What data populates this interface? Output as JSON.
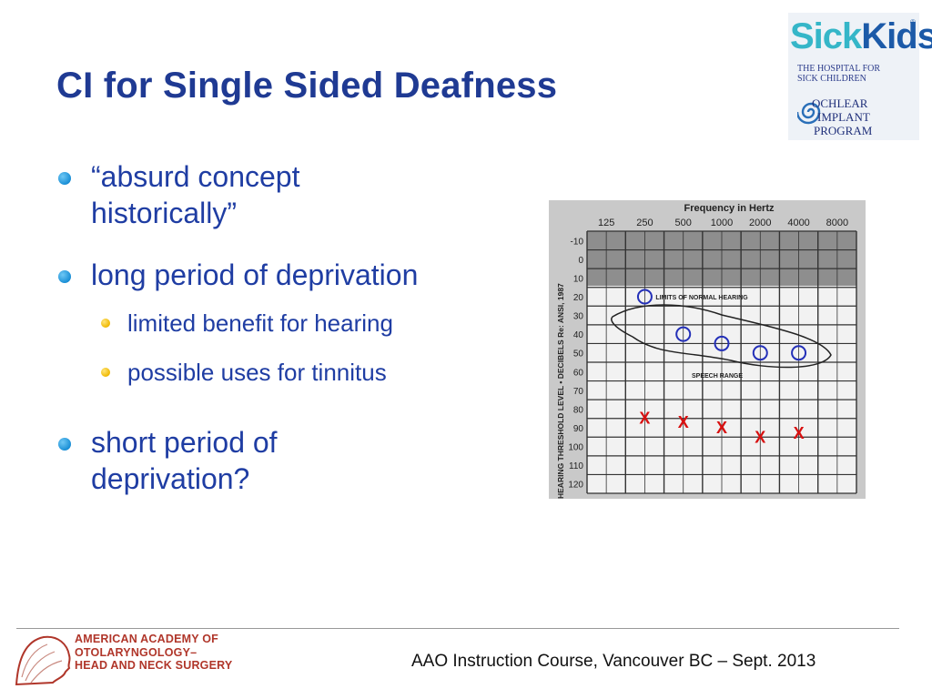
{
  "title": "CI for Single Sided Deafness",
  "bullets": [
    {
      "text": "“absurd concept historically”"
    },
    {
      "text": "long period of deprivation",
      "sub": [
        "limited benefit for hearing",
        "possible uses for tinnitus"
      ]
    },
    {
      "text": "short period of deprivation?"
    }
  ],
  "logo": {
    "name_a": "Sick",
    "name_b": "Kids",
    "registered": "®",
    "hospital_line1": "THE HOSPITAL FOR",
    "hospital_line2": "SICK CHILDREN",
    "program_line1": "OCHLEAR",
    "program_line2": "IMPLANT",
    "program_line3": "PROGRAM"
  },
  "audiogram": {
    "header": "Frequency in Hertz",
    "frequencies": [
      "125",
      "250",
      "500",
      "1000",
      "2000",
      "4000",
      "8000"
    ],
    "levels": [
      "-10",
      "0",
      "10",
      "20",
      "30",
      "40",
      "50",
      "60",
      "70",
      "80",
      "90",
      "100",
      "110",
      "120"
    ],
    "ylabel": "HEARING THRESHOLD LEVEL • DECIBELS Re: ANSI, 1987",
    "normal_label": "LIMITS OF NORMAL HEARING",
    "speech_label": "SPEECH RANGE",
    "right_ear_marker": "O",
    "left_ear_marker": "X",
    "right_ear_color": "#2430b8",
    "left_ear_color": "#d81010",
    "right_ear": [
      {
        "freq": "250",
        "db": 20
      },
      {
        "freq": "500",
        "db": 40
      },
      {
        "freq": "1000",
        "db": 45
      },
      {
        "freq": "2000",
        "db": 50
      },
      {
        "freq": "4000",
        "db": 50
      }
    ],
    "left_ear": [
      {
        "freq": "250",
        "db": 85
      },
      {
        "freq": "500",
        "db": 87
      },
      {
        "freq": "1000",
        "db": 90
      },
      {
        "freq": "2000",
        "db": 95
      },
      {
        "freq": "4000",
        "db": 93
      }
    ]
  },
  "footer": {
    "org_line1": "AMERICAN ACADEMY OF",
    "org_line2": "OTOLARYNGOLOGY–",
    "org_line3": "HEAD AND NECK SURGERY",
    "course": "AAO Instruction Course, Vancouver BC – Sept. 2013"
  },
  "colors": {
    "title": "#1f3a93",
    "bullet_text": "#1f3da3",
    "accent_red": "#b0362a"
  }
}
